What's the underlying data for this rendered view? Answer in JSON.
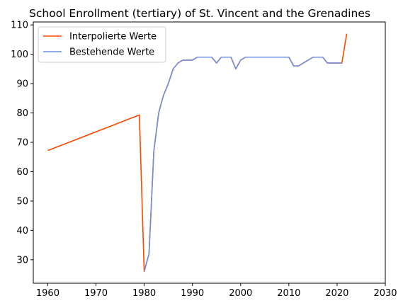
{
  "chart_data": {
    "type": "line",
    "title": "School Enrollment (tertiary) of St. Vincent and the Grenadines",
    "xlabel": "",
    "ylabel": "",
    "xlim": [
      1957,
      2030
    ],
    "ylim": [
      22,
      111
    ],
    "x_ticks": [
      1960,
      1970,
      1980,
      1990,
      2000,
      2010,
      2020,
      2030
    ],
    "y_ticks": [
      30,
      40,
      50,
      60,
      70,
      80,
      90,
      100,
      110
    ],
    "grid": false,
    "legend": {
      "placement": "top-left",
      "entries": [
        "Interpolierte Werte",
        "Bestehende Werte"
      ]
    },
    "series": [
      {
        "name": "Interpolierte Werte",
        "color": "#ff4500",
        "x": [
          1960,
          1979,
          1980,
          1981,
          1982,
          1983,
          1984,
          1985,
          1986,
          1987,
          1988,
          1989,
          1990,
          1991,
          1992,
          1993,
          1994,
          1995,
          1996,
          1997,
          1998,
          1999,
          2000,
          2001,
          2002,
          2003,
          2004,
          2005,
          2006,
          2007,
          2008,
          2009,
          2010,
          2011,
          2012,
          2013,
          2014,
          2015,
          2016,
          2017,
          2018,
          2019,
          2020,
          2021,
          2022
        ],
        "y": [
          67.2,
          79.3,
          26,
          32,
          67,
          80,
          86,
          90,
          95,
          97,
          98,
          98,
          98,
          99,
          99,
          99,
          99,
          97,
          99,
          99,
          99,
          95,
          98,
          99,
          99,
          99,
          99,
          99,
          99,
          99,
          99,
          99,
          99,
          96,
          96,
          97,
          98,
          99,
          99,
          99,
          97,
          97,
          97,
          97,
          107
        ]
      },
      {
        "name": "Bestehende Werte",
        "color": "#6f8fdf",
        "x": [
          1980,
          1981,
          1982,
          1983,
          1984,
          1985,
          1986,
          1987,
          1988,
          1989,
          1990,
          1991,
          1992,
          1993,
          1994,
          1995,
          1996,
          1997,
          1998,
          1999,
          2000,
          2001,
          2002,
          2003,
          2004,
          2005,
          2006,
          2007,
          2008,
          2009,
          2010,
          2011,
          2012,
          2013,
          2014,
          2015,
          2016,
          2017,
          2018,
          2019,
          2020,
          2021
        ],
        "y": [
          26,
          32,
          67,
          80,
          86,
          90,
          95,
          97,
          98,
          98,
          98,
          99,
          99,
          99,
          99,
          97,
          99,
          99,
          99,
          95,
          98,
          99,
          99,
          99,
          99,
          99,
          99,
          99,
          99,
          99,
          99,
          96,
          96,
          97,
          98,
          99,
          99,
          99,
          97,
          97,
          97,
          97
        ]
      }
    ]
  }
}
